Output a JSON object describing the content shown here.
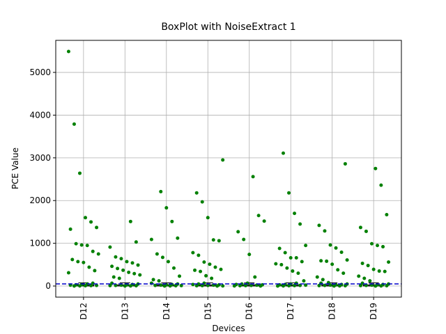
{
  "chart_data": {
    "type": "box",
    "title": "BoxPlot with NoiseExtract 1",
    "xlabel": "Devices",
    "ylabel": "PCE Value",
    "categories": [
      "D12",
      "D13",
      "D14",
      "D15",
      "D16",
      "D17",
      "D18",
      "D19"
    ],
    "ylim": [
      -260,
      5750
    ],
    "yticks": [
      0,
      1000,
      2000,
      3000,
      4000,
      5000
    ],
    "grid": true,
    "point_color": "#008000",
    "box_color": "#000000",
    "hline": {
      "value": 50,
      "color": "#0000cc"
    },
    "boxes": [
      {
        "whislo": 0,
        "q1": 0,
        "median": 8,
        "q3": 30,
        "whishi": 75
      },
      {
        "whislo": 0,
        "q1": 0,
        "median": 8,
        "q3": 30,
        "whishi": 75
      },
      {
        "whislo": 0,
        "q1": 0,
        "median": 8,
        "q3": 30,
        "whishi": 75
      },
      {
        "whislo": 0,
        "q1": 0,
        "median": 8,
        "q3": 30,
        "whishi": 75
      },
      {
        "whislo": 0,
        "q1": 0,
        "median": 8,
        "q3": 30,
        "whishi": 75
      },
      {
        "whislo": 0,
        "q1": 0,
        "median": 8,
        "q3": 30,
        "whishi": 75
      },
      {
        "whislo": 0,
        "q1": 0,
        "median": 8,
        "q3": 30,
        "whishi": 75
      },
      {
        "whislo": 0,
        "q1": 0,
        "median": 8,
        "q3": 30,
        "whishi": 75
      }
    ],
    "points": [
      [
        5490,
        3790,
        2640,
        1600,
        1500,
        1370,
        1330,
        990,
        960,
        950,
        810,
        750,
        620,
        570,
        550,
        440,
        360,
        310,
        0,
        3,
        6,
        10,
        14,
        20,
        28,
        36,
        48,
        65
      ],
      [
        1510,
        1030,
        910,
        680,
        640,
        570,
        540,
        490,
        460,
        410,
        370,
        320,
        290,
        260,
        210,
        180,
        0,
        3,
        6,
        10,
        14,
        20,
        28,
        36,
        48,
        65
      ],
      [
        2210,
        1830,
        1510,
        1120,
        1090,
        750,
        670,
        570,
        420,
        230,
        150,
        120,
        0,
        3,
        6,
        10,
        14,
        20,
        28,
        36,
        48,
        65
      ],
      [
        2950,
        2180,
        1970,
        1600,
        1080,
        1060,
        780,
        720,
        560,
        510,
        440,
        390,
        370,
        340,
        240,
        180,
        0,
        3,
        6,
        10,
        14,
        20,
        28,
        36,
        48,
        65
      ],
      [
        2560,
        1650,
        1520,
        1270,
        1090,
        740,
        210,
        0,
        3,
        6,
        10,
        14,
        20,
        28,
        36,
        48,
        65
      ],
      [
        3110,
        2180,
        1700,
        1450,
        950,
        880,
        780,
        660,
        660,
        570,
        520,
        500,
        420,
        350,
        300,
        120,
        0,
        3,
        6,
        10,
        14,
        20,
        28,
        36,
        48,
        65
      ],
      [
        2860,
        1420,
        1290,
        960,
        890,
        790,
        610,
        590,
        580,
        510,
        380,
        300,
        210,
        150,
        80,
        0,
        3,
        6,
        10,
        14,
        20,
        28,
        36,
        48,
        65
      ],
      [
        2750,
        2360,
        1670,
        1370,
        1280,
        990,
        950,
        920,
        560,
        530,
        480,
        390,
        350,
        340,
        230,
        180,
        120,
        0,
        3,
        6,
        10,
        14,
        20,
        28,
        36,
        48,
        65
      ]
    ]
  }
}
